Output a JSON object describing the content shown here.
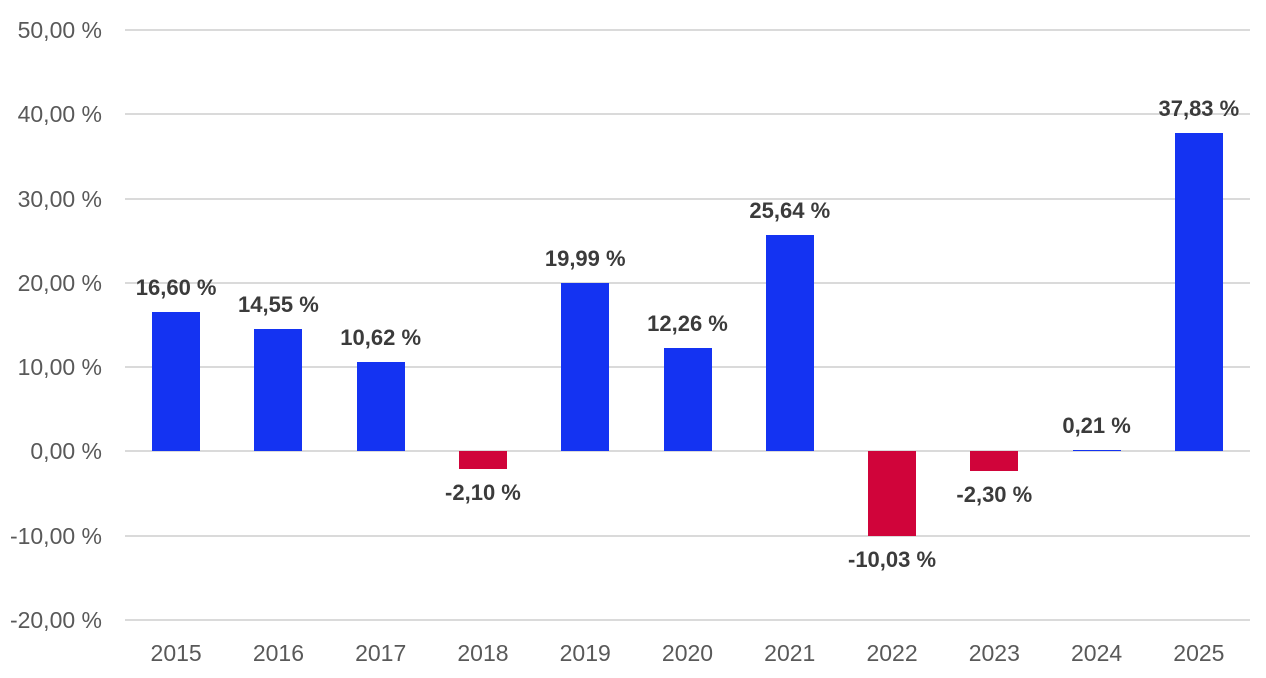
{
  "chart_data": {
    "type": "bar",
    "title": "",
    "xlabel": "",
    "ylabel": "",
    "categories": [
      "2015",
      "2016",
      "2017",
      "2018",
      "2019",
      "2020",
      "2021",
      "2022",
      "2023",
      "2024",
      "2025"
    ],
    "values": [
      16.6,
      14.55,
      10.62,
      -2.1,
      19.99,
      12.26,
      25.64,
      -10.03,
      -2.3,
      0.21,
      37.83
    ],
    "value_labels": [
      "16,60 %",
      "14,55 %",
      "10,62 %",
      "-2,10 %",
      "19,99 %",
      "12,26 %",
      "25,64 %",
      "-10,03 %",
      "-2,30 %",
      "0,21 %",
      "37,83 %"
    ],
    "ytick_values": [
      50,
      40,
      30,
      20,
      10,
      0,
      -10,
      -20
    ],
    "ytick_labels": [
      "50,00 %",
      "40,00 %",
      "30,00 %",
      "20,00 %",
      "10,00 %",
      "0,00 %",
      "-10,00 %",
      "-20,00 %"
    ],
    "ylim": [
      -20,
      50
    ],
    "grid": true,
    "legend": false,
    "colors": {
      "bar_positive": "#1433F2",
      "bar_negative": "#D0043A",
      "gridline": "#DADADA",
      "axis_text": "#595959",
      "value_label_text": "#3B3B3B",
      "background": "#FFFFFF"
    }
  }
}
